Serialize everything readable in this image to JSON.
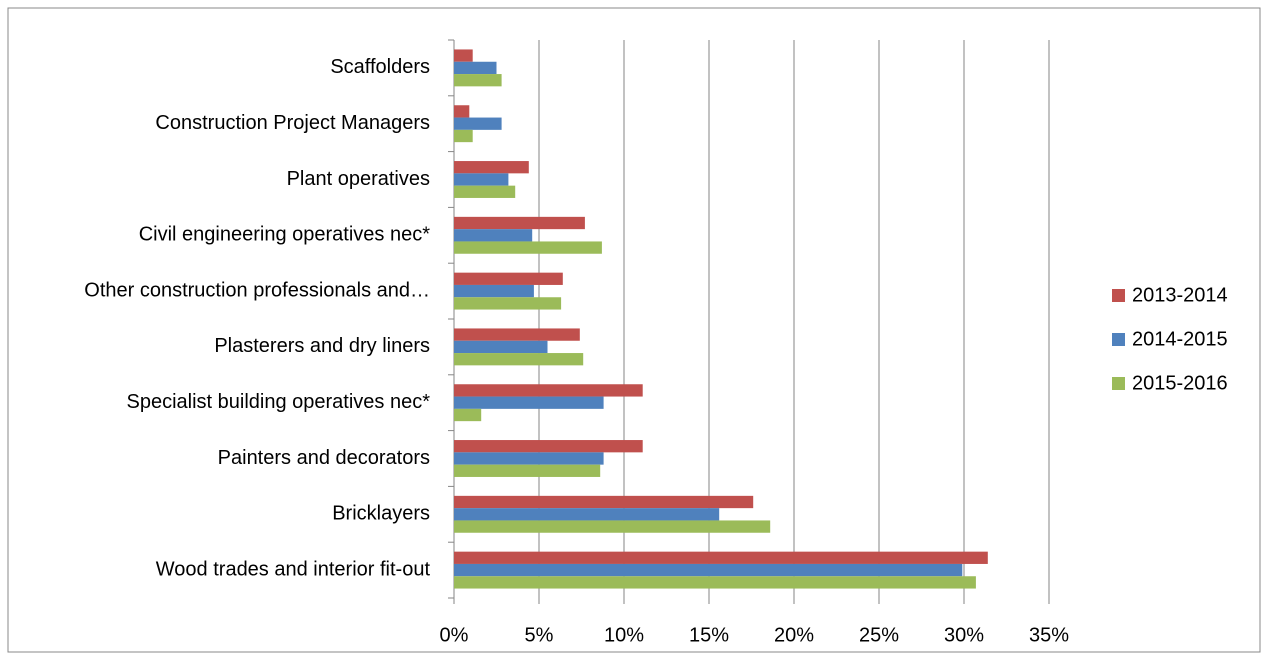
{
  "chart_data": {
    "type": "bar",
    "orientation": "horizontal",
    "categories": [
      "Scaffolders",
      "Construction Project Managers",
      "Plant operatives",
      "Civil engineering operatives nec*",
      "Other construction professionals and…",
      "Plasterers and dry liners",
      "Specialist building operatives nec*",
      "Painters and decorators",
      "Bricklayers",
      "Wood trades and interior fit-out"
    ],
    "series": [
      {
        "name": "2013-2014",
        "color": "#c0504d",
        "values": [
          1.1,
          0.9,
          4.4,
          7.7,
          6.4,
          7.4,
          11.1,
          11.1,
          17.6,
          31.4
        ]
      },
      {
        "name": "2014-2015",
        "color": "#4f81bd",
        "values": [
          2.5,
          2.8,
          3.2,
          4.6,
          4.7,
          5.5,
          8.8,
          8.8,
          15.6,
          29.9
        ]
      },
      {
        "name": "2015-2016",
        "color": "#9bbb59",
        "values": [
          2.8,
          1.1,
          3.6,
          8.7,
          6.3,
          7.6,
          1.6,
          8.6,
          18.6,
          30.7
        ]
      }
    ],
    "xlim": [
      0,
      35
    ],
    "xticks": [
      {
        "value": 0,
        "label": "0%"
      },
      {
        "value": 5,
        "label": "5%"
      },
      {
        "value": 10,
        "label": "10%"
      },
      {
        "value": 15,
        "label": "15%"
      },
      {
        "value": 20,
        "label": "20%"
      },
      {
        "value": 25,
        "label": "25%"
      },
      {
        "value": 30,
        "label": "30%"
      },
      {
        "value": 35,
        "label": "35%"
      }
    ],
    "grid": true,
    "legend": "right"
  }
}
